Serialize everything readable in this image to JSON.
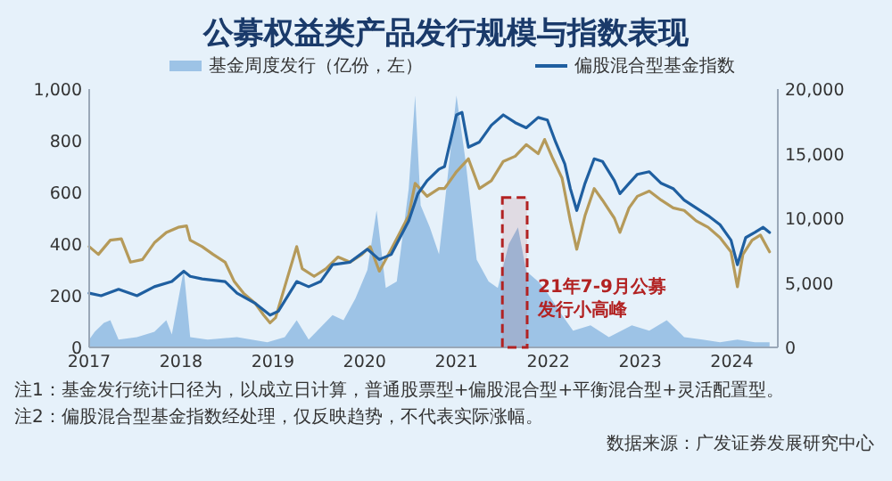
{
  "chart_data": {
    "type": "area",
    "title": "公募权益类产品发行规模与指数表现",
    "legend": "top",
    "grid": false,
    "xlim": [
      2017,
      2024.5
    ],
    "xticks": [
      2017,
      2018,
      2019,
      2020,
      2021,
      2022,
      2023,
      2024
    ],
    "ylim": [
      0,
      1000
    ],
    "yticks": [
      0,
      200,
      400,
      600,
      800,
      {
        "value": 1000,
        "label": "1,000"
      }
    ],
    "y2lim": [
      0,
      20000
    ],
    "y2ticks": [
      0,
      {
        "value": 5000,
        "label": "5,000"
      },
      {
        "value": 10000,
        "label": "10,000"
      },
      {
        "value": 15000,
        "label": "15,000"
      },
      {
        "value": 20000,
        "label": "20,000"
      }
    ],
    "series": [
      {
        "name": "基金周度发行（亿份，左）",
        "color": "#9dc3e6",
        "x": [
          2017.0,
          2017.06,
          2017.16,
          2017.23,
          2017.32,
          2017.52,
          2017.71,
          2017.84,
          2017.9,
          2018.03,
          2018.1,
          2018.29,
          2018.61,
          2018.94,
          2019.13,
          2019.26,
          2019.39,
          2019.65,
          2019.77,
          2019.9,
          2020.03,
          2020.13,
          2020.23,
          2020.35,
          2020.48,
          2020.55,
          2020.61,
          2020.71,
          2020.81,
          2020.87,
          2021.0,
          2021.1,
          2021.22,
          2021.35,
          2021.45,
          2021.57,
          2021.67,
          2021.76,
          2021.89,
          2021.99,
          2022.15,
          2022.27,
          2022.46,
          2022.66,
          2022.91,
          2023.1,
          2023.29,
          2023.48,
          2023.68,
          2023.87,
          2024.06,
          2024.25,
          2024.41
        ],
        "values": [
          30,
          60,
          95,
          105,
          30,
          40,
          60,
          105,
          50,
          300,
          40,
          30,
          40,
          20,
          40,
          105,
          30,
          125,
          105,
          190,
          300,
          530,
          230,
          255,
          615,
          975,
          550,
          465,
          360,
          550,
          975,
          720,
          340,
          255,
          230,
          400,
          465,
          295,
          255,
          210,
          125,
          65,
          85,
          40,
          85,
          65,
          105,
          40,
          30,
          20,
          30,
          20,
          20
        ]
      },
      {
        "type": "line",
        "axis": "y2",
        "color": "#b59a5a",
        "x": [
          2017.0,
          2017.1,
          2017.23,
          2017.35,
          2017.45,
          2017.58,
          2017.71,
          2017.84,
          2017.97,
          2018.06,
          2018.1,
          2018.23,
          2018.35,
          2018.48,
          2018.58,
          2018.68,
          2018.81,
          2018.9,
          2018.97,
          2019.03,
          2019.13,
          2019.26,
          2019.32,
          2019.45,
          2019.58,
          2019.71,
          2019.84,
          2019.97,
          2020.06,
          2020.16,
          2020.29,
          2020.48,
          2020.55,
          2020.68,
          2020.81,
          2020.87,
          2021.0,
          2021.13,
          2021.25,
          2021.38,
          2021.51,
          2021.64,
          2021.76,
          2021.89,
          2021.96,
          2022.05,
          2022.15,
          2022.24,
          2022.31,
          2022.4,
          2022.5,
          2022.59,
          2022.72,
          2022.78,
          2022.88,
          2022.97,
          2023.1,
          2023.23,
          2023.36,
          2023.48,
          2023.61,
          2023.74,
          2023.87,
          2023.99,
          2024.06,
          2024.12,
          2024.22,
          2024.31,
          2024.41
        ],
        "values": [
          7800,
          7200,
          8300,
          8400,
          6600,
          6800,
          8100,
          8900,
          9300,
          9400,
          8300,
          7800,
          7200,
          6600,
          5100,
          4200,
          3400,
          2500,
          1900,
          2300,
          4700,
          7800,
          6100,
          5500,
          6100,
          7000,
          6600,
          7200,
          7800,
          5900,
          7600,
          10200,
          12700,
          11700,
          12300,
          12300,
          13600,
          14600,
          12300,
          12900,
          14400,
          14800,
          15700,
          15000,
          16100,
          14600,
          13100,
          9800,
          7600,
          10200,
          12300,
          11400,
          10000,
          8900,
          10800,
          11700,
          12100,
          11400,
          10800,
          10600,
          9800,
          9300,
          8500,
          7400,
          4700,
          7200,
          8300,
          8700,
          7400
        ]
      },
      {
        "name": "偏股混合型基金指数",
        "type": "line",
        "axis": "y2",
        "color": "#1f5fa0",
        "x": [
          2017.0,
          2017.13,
          2017.32,
          2017.52,
          2017.71,
          2017.9,
          2018.03,
          2018.1,
          2018.23,
          2018.48,
          2018.61,
          2018.81,
          2018.97,
          2019.06,
          2019.26,
          2019.39,
          2019.52,
          2019.65,
          2019.84,
          2020.03,
          2020.16,
          2020.29,
          2020.48,
          2020.58,
          2020.68,
          2020.81,
          2020.87,
          2021.0,
          2021.06,
          2021.13,
          2021.25,
          2021.38,
          2021.51,
          2021.64,
          2021.76,
          2021.89,
          2021.99,
          2022.08,
          2022.18,
          2022.24,
          2022.31,
          2022.4,
          2022.5,
          2022.59,
          2022.72,
          2022.78,
          2022.88,
          2022.97,
          2023.1,
          2023.23,
          2023.36,
          2023.48,
          2023.61,
          2023.74,
          2023.87,
          2023.99,
          2024.06,
          2024.15,
          2024.25,
          2024.34,
          2024.41
        ],
        "values": [
          4200,
          4000,
          4500,
          4000,
          4700,
          5100,
          5900,
          5500,
          5300,
          5100,
          4200,
          3400,
          2500,
          2800,
          5100,
          4700,
          5100,
          6400,
          6600,
          7600,
          6800,
          7200,
          9800,
          11900,
          12900,
          13800,
          14000,
          18000,
          18200,
          15500,
          15900,
          17200,
          18000,
          17400,
          17000,
          17800,
          17600,
          15900,
          14200,
          12300,
          10600,
          12700,
          14600,
          14400,
          12900,
          11900,
          12700,
          13400,
          13600,
          12700,
          12300,
          11400,
          10800,
          10200,
          9500,
          8300,
          6400,
          8500,
          8900,
          9300,
          8900
        ]
      }
    ],
    "bands": [
      {
        "axis": "x",
        "from": 2021.5,
        "to": 2021.77,
        "label": "21年7-9月公募发行小高峰",
        "color": "#b22222"
      }
    ],
    "annotations": [
      "注1：基金发行统计口径为，以成立日计算，普通股票型+偏股混合型+平衡混合型+灵活配置型。",
      "注2：偏股混合型基金指数经处理，仅反映趋势，不代表实际涨幅。",
      "数据来源：广发证券发展研究中心"
    ]
  }
}
